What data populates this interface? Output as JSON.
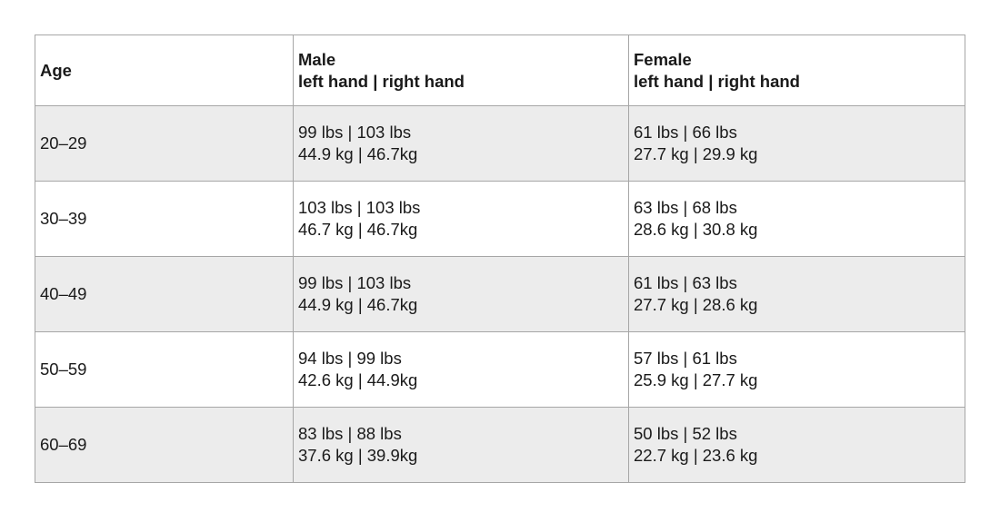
{
  "table": {
    "header": [
      "Age",
      [
        "Male",
        "left hand | right hand"
      ],
      [
        "Female",
        "left hand | right hand"
      ]
    ],
    "rows": [
      [
        "20–29",
        [
          "99 lbs | 103 lbs",
          "44.9 kg | 46.7kg"
        ],
        [
          "61 lbs | 66 lbs",
          "27.7 kg | 29.9 kg"
        ]
      ],
      [
        "30–39",
        [
          "103 lbs | 103 lbs",
          "46.7 kg | 46.7kg"
        ],
        [
          "63 lbs | 68 lbs",
          "28.6 kg | 30.8 kg"
        ]
      ],
      [
        "40–49",
        [
          "99 lbs | 103 lbs",
          "44.9 kg | 46.7kg"
        ],
        [
          "61 lbs | 63 lbs",
          "27.7 kg | 28.6 kg"
        ]
      ],
      [
        "50–59",
        [
          "94 lbs | 99 lbs",
          "42.6 kg | 44.9kg"
        ],
        [
          "57 lbs | 61 lbs",
          "25.9 kg | 27.7 kg"
        ]
      ],
      [
        "60–69",
        [
          "83 lbs | 88 lbs",
          "37.6 kg | 39.9kg"
        ],
        [
          "50 lbs | 52 lbs",
          "22.7 kg | 23.6 kg"
        ]
      ]
    ]
  }
}
